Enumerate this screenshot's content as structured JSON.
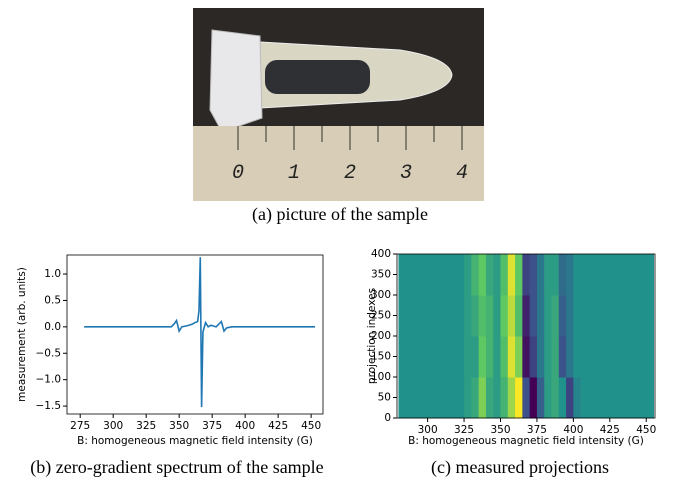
{
  "photo": {
    "caption": "(a) picture of the sample",
    "ruler_labels": [
      0,
      1,
      2,
      3,
      4
    ]
  },
  "chart_data": [
    {
      "type": "line",
      "caption": "(b) zero-gradient spectrum of the sample",
      "x_label": "B: homogeneous magnetic field intensity (G)",
      "y_label": "measurement (arb. units)",
      "xlim": [
        265,
        459
      ],
      "ylim": [
        -1.65,
        1.36
      ],
      "xticks": [
        275,
        300,
        325,
        350,
        375,
        400,
        425,
        450
      ],
      "yticks": [
        {
          "value": 1,
          "label": "1.0"
        },
        {
          "value": 0.5,
          "label": "0.5"
        },
        {
          "value": 0,
          "label": "0.0"
        },
        {
          "value": -0.5,
          "label": "−0.5"
        },
        {
          "value": -1,
          "label": "−1.0"
        },
        {
          "value": -1.5,
          "label": "−1.5"
        }
      ],
      "series": [
        {
          "color": "#1f77b4",
          "x": [
            278,
            344,
            346,
            348,
            350,
            352,
            356,
            360,
            362,
            364,
            365,
            366,
            367,
            368,
            370,
            372,
            374,
            378,
            380,
            382,
            384,
            386,
            390,
            453
          ],
          "values": [
            0,
            0,
            0.05,
            0.12,
            -0.08,
            0,
            0.02,
            0.05,
            0.08,
            0.1,
            0.3,
            1.32,
            -1.52,
            -0.1,
            0.08,
            0,
            0.03,
            0,
            0.05,
            0.1,
            -0.08,
            -0.02,
            0,
            0
          ]
        }
      ]
    },
    {
      "type": "heatmap",
      "caption": "(c) measured projections",
      "x_label": "B: homogeneous magnetic field intensity (G)",
      "y_label": "projection indexes",
      "xlim": [
        279,
        456
      ],
      "ylim": [
        0,
        400
      ],
      "xticks": [
        300,
        325,
        350,
        375,
        400,
        425,
        450
      ],
      "yticks": [
        0,
        50,
        100,
        150,
        200,
        250,
        300,
        350,
        400
      ],
      "colormap": "viridis",
      "zlim": [
        -1,
        1
      ],
      "x_edges": [
        280,
        285,
        290,
        295,
        300,
        305,
        310,
        315,
        320,
        325,
        330,
        335,
        340,
        345,
        350,
        355,
        360,
        365,
        370,
        375,
        380,
        385,
        390,
        395,
        400,
        405,
        410,
        415,
        420,
        425,
        430,
        435,
        440,
        445,
        450,
        455
      ],
      "y_edges": [
        0,
        100,
        200,
        300,
        400
      ],
      "z": [
        [
          0,
          0,
          0,
          0,
          0,
          0,
          0,
          0,
          0,
          0.1,
          0.2,
          0.6,
          0.2,
          0.1,
          0.3,
          0.7,
          1,
          -0.5,
          -1,
          -0.4,
          0.1,
          0.2,
          0,
          -0.6,
          -0.1,
          0,
          0,
          0,
          0,
          0,
          0,
          0,
          0,
          0,
          0
        ],
        [
          0,
          0,
          0,
          0,
          0,
          0,
          0,
          0,
          0,
          0.1,
          0.1,
          0.5,
          0.3,
          0.1,
          0.4,
          0.9,
          0.6,
          -0.9,
          -0.6,
          -0.2,
          0.1,
          0.2,
          -0.5,
          -0.2,
          0,
          0,
          0,
          0,
          0,
          0,
          0,
          0,
          0,
          0,
          0
        ],
        [
          0,
          0,
          0,
          0,
          0,
          0,
          0,
          0,
          0,
          0.1,
          0.2,
          0.4,
          0.3,
          0.1,
          0.5,
          0.8,
          0.4,
          -0.8,
          -0.5,
          -0.2,
          0.1,
          0.2,
          -0.4,
          -0.2,
          0,
          0,
          0,
          0,
          0,
          0,
          0,
          0,
          0,
          0,
          0
        ],
        [
          0,
          0,
          0,
          0,
          0,
          0,
          0,
          0,
          0,
          0.1,
          0.3,
          0.5,
          0.2,
          0.1,
          0.4,
          0.9,
          0.5,
          -0.6,
          -0.5,
          -0.2,
          0.1,
          0.1,
          -0.3,
          -0.2,
          0,
          0,
          0,
          0,
          0,
          0,
          0,
          0,
          0,
          0,
          0
        ]
      ]
    }
  ]
}
